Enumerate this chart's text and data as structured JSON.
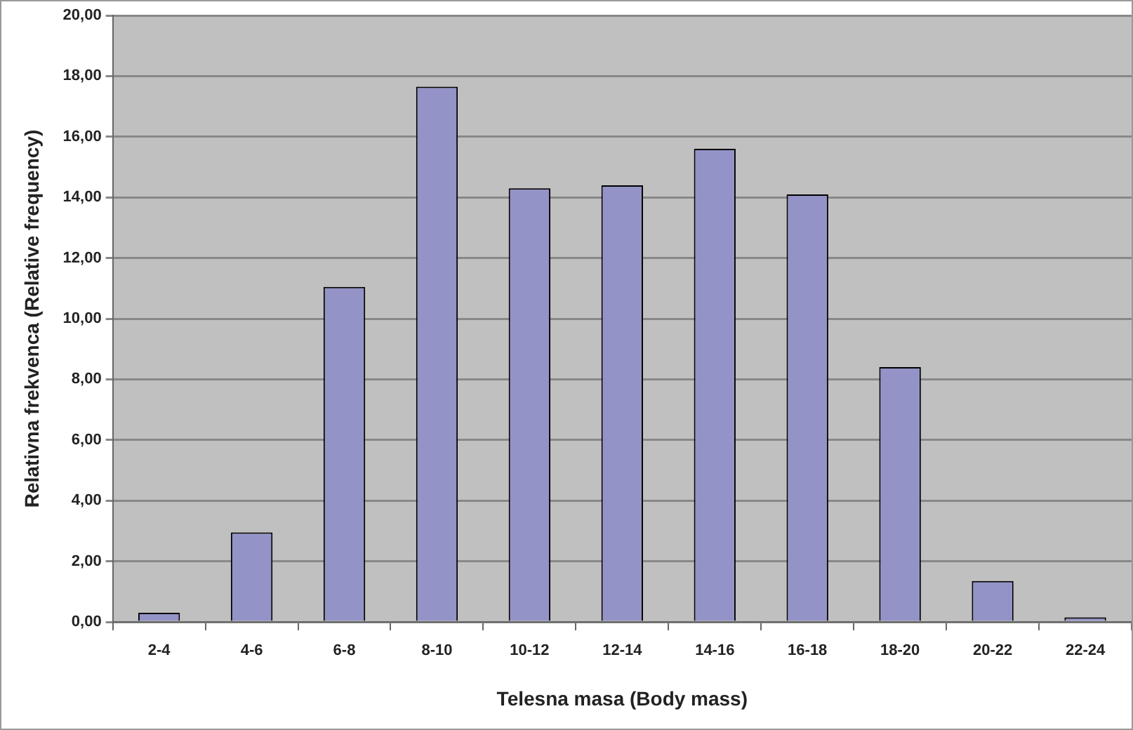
{
  "chart_data": {
    "type": "bar",
    "xlabel": "Telesna masa (Body mass)",
    "ylabel": "Relativna frekvenca (Relative frequency)",
    "categories": [
      "2-4",
      "4-6",
      "6-8",
      "8-10",
      "10-12",
      "12-14",
      "14-16",
      "16-18",
      "18-20",
      "20-22",
      "22-24"
    ],
    "values": [
      0.3,
      2.95,
      11.05,
      17.65,
      14.3,
      14.4,
      15.6,
      14.1,
      8.4,
      1.35,
      0.15
    ],
    "color": "#9393c8",
    "ylim": [
      0,
      20
    ],
    "yticks": [
      {
        "value": 0,
        "label": "0,00"
      },
      {
        "value": 2,
        "label": "2,00"
      },
      {
        "value": 4,
        "label": "4,00"
      },
      {
        "value": 6,
        "label": "6,00"
      },
      {
        "value": 8,
        "label": "8,00"
      },
      {
        "value": 10,
        "label": "10,00"
      },
      {
        "value": 12,
        "label": "12,00"
      },
      {
        "value": 14,
        "label": "14,00"
      },
      {
        "value": 16,
        "label": "16,00"
      },
      {
        "value": 18,
        "label": "18,00"
      },
      {
        "value": 20,
        "label": "20,00"
      }
    ],
    "grid": "y",
    "legend": false
  }
}
